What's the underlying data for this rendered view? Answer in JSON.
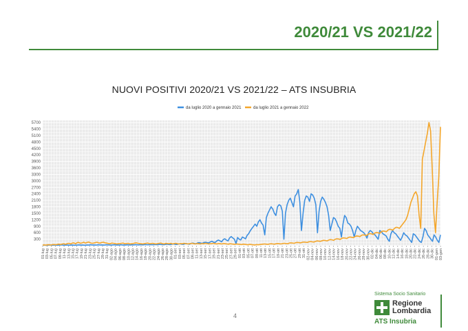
{
  "slide": {
    "title": "2020/21 VS 2021/22",
    "page_number": "4"
  },
  "logo": {
    "system": "Sistema Socio Sanitario",
    "region_line1": "Regione",
    "region_line2": "Lombardia",
    "agency": "ATS Insubria"
  },
  "colors": {
    "accent_green": "#3f8a3a",
    "series_2020": "#3d8fe0",
    "series_2021": "#f4a62a",
    "plot_bg": "#ebebeb",
    "grid": "#ffffff"
  },
  "chart_data": {
    "type": "line",
    "title": "NUOVI POSITIVI 2020/21 VS 2021/22 – ATS INSUBRIA",
    "xlabel": "",
    "ylabel": "",
    "legend_position": "top-center",
    "grid": true,
    "ylim": [
      0,
      5800
    ],
    "y_ticks": [
      300,
      600,
      900,
      1200,
      1500,
      1800,
      2100,
      2400,
      2700,
      3000,
      3300,
      3600,
      3900,
      4200,
      4500,
      4800,
      5100,
      5400,
      5700
    ],
    "x_tick_labels": [
      "01-lug",
      "03-lug",
      "05-lug",
      "07-lug",
      "09-lug",
      "11-lug",
      "13-lug",
      "15-lug",
      "17-lug",
      "19-lug",
      "21-lug",
      "23-lug",
      "25-lug",
      "27-lug",
      "29-lug",
      "31-lug",
      "02-ago",
      "04-ago",
      "06-ago",
      "08-ago",
      "10-ago",
      "12-ago",
      "14-ago",
      "16-ago",
      "18-ago",
      "20-ago",
      "22-ago",
      "24-ago",
      "26-ago",
      "28-ago",
      "30-ago",
      "01-set",
      "03-set",
      "05-set",
      "07-set",
      "09-set",
      "11-set",
      "13-set",
      "15-set",
      "17-set",
      "19-set",
      "21-set",
      "23-set",
      "25-set",
      "27-set",
      "29-set",
      "01-ott",
      "03-ott",
      "05-ott",
      "07-ott",
      "09-ott",
      "11-ott",
      "13-ott",
      "15-ott",
      "17-ott",
      "19-ott",
      "21-ott",
      "23-ott",
      "25-ott",
      "27-ott",
      "29-ott",
      "31-ott",
      "02-nov",
      "04-nov",
      "06-nov",
      "08-nov",
      "10-nov",
      "12-nov",
      "14-nov",
      "16-nov",
      "18-nov",
      "20-nov",
      "22-nov",
      "24-nov",
      "26-nov",
      "28-nov",
      "30-nov",
      "02-dic",
      "04-dic",
      "06-dic",
      "08-dic",
      "10-dic",
      "12-dic",
      "14-dic",
      "16-dic",
      "18-dic",
      "20-dic",
      "22-dic",
      "24-dic",
      "26-dic",
      "28-dic",
      "30-dic",
      "01-gen",
      "03-gen"
    ],
    "series": [
      {
        "name": "da luglio 2020 a gennaio 2021",
        "color": "#3d8fe0",
        "values": [
          20,
          25,
          15,
          20,
          25,
          30,
          20,
          25,
          30,
          20,
          25,
          30,
          35,
          20,
          25,
          30,
          25,
          20,
          30,
          25,
          20,
          25,
          30,
          35,
          25,
          30,
          20,
          25,
          30,
          25,
          40,
          30,
          35,
          25,
          30,
          40,
          30,
          35,
          25,
          30,
          40,
          35,
          30,
          25,
          35,
          40,
          30,
          35,
          25,
          40,
          30,
          35,
          30,
          40,
          35,
          30,
          40,
          35,
          45,
          40,
          35,
          45,
          40,
          35,
          50,
          45,
          40,
          50,
          45,
          40,
          55,
          50,
          45,
          60,
          55,
          50,
          45,
          60,
          70,
          55,
          50,
          70,
          80,
          60,
          55,
          80,
          90,
          70,
          60,
          90,
          100,
          80,
          70,
          110,
          120,
          100,
          90,
          130,
          140,
          120,
          110,
          150,
          160,
          140,
          130,
          180,
          200,
          160,
          150,
          220,
          260,
          220,
          180,
          280,
          320,
          260,
          220,
          360,
          420,
          360,
          300,
          100,
          380,
          300,
          260,
          400,
          360,
          320,
          480,
          560,
          700,
          800,
          900,
          1000,
          900,
          1100,
          1200,
          1050,
          950,
          500,
          1300,
          1500,
          1650,
          1800,
          1700,
          1500,
          1400,
          1800,
          1900,
          1850,
          1600,
          300,
          1500,
          1900,
          2100,
          2200,
          2000,
          1800,
          2300,
          2400,
          2600,
          2000,
          700,
          1500,
          2100,
          2300,
          2250,
          2050,
          2400,
          2350,
          2200,
          1900,
          600,
          1600,
          2050,
          2250,
          2150,
          2000,
          1800,
          1400,
          700,
          1000,
          1300,
          1250,
          1100,
          900,
          800,
          400,
          1000,
          1400,
          1300,
          1050,
          1000,
          900,
          700,
          400,
          700,
          900,
          800,
          700,
          650,
          600,
          500,
          350,
          600,
          700,
          650,
          550,
          500,
          400,
          300,
          700,
          650,
          550,
          500,
          450,
          300,
          200,
          550,
          700,
          600,
          550,
          450,
          350,
          250,
          400,
          600,
          500,
          450,
          350,
          250,
          150,
          550,
          500,
          400,
          300,
          200,
          150,
          400,
          800,
          700,
          500,
          400,
          300,
          200,
          500,
          400,
          250,
          150,
          500
        ]
      },
      {
        "name": "da luglio 2021 a gennaio 2022",
        "color": "#f4a62a",
        "values": [
          30,
          35,
          25,
          40,
          45,
          30,
          50,
          55,
          40,
          60,
          70,
          50,
          80,
          90,
          60,
          100,
          110,
          80,
          120,
          130,
          90,
          140,
          150,
          110,
          130,
          160,
          120,
          150,
          170,
          130,
          110,
          120,
          140,
          160,
          130,
          120,
          150,
          160,
          130,
          120,
          100,
          90,
          120,
          110,
          100,
          80,
          90,
          100,
          110,
          120,
          90,
          100,
          110,
          80,
          90,
          100,
          120,
          130,
          110,
          100,
          90,
          80,
          100,
          110,
          120,
          90,
          100,
          110,
          90,
          80,
          100,
          110,
          120,
          90,
          80,
          110,
          100,
          90,
          110,
          80,
          100,
          110,
          90,
          80,
          100,
          90,
          110,
          100,
          80,
          90,
          100,
          110,
          90,
          80,
          100,
          90,
          80,
          100,
          90,
          110,
          100,
          80,
          90,
          100,
          110,
          90,
          80,
          100,
          90,
          80,
          100,
          90,
          80,
          70,
          90,
          80,
          70,
          60,
          80,
          70,
          60,
          50,
          70,
          60,
          50,
          40,
          60,
          50,
          40,
          30,
          50,
          40,
          50,
          60,
          70,
          80,
          70,
          60,
          80,
          90,
          80,
          70,
          90,
          100,
          90,
          80,
          100,
          110,
          100,
          90,
          120,
          130,
          120,
          110,
          140,
          150,
          140,
          130,
          160,
          170,
          160,
          150,
          180,
          190,
          180,
          170,
          200,
          220,
          210,
          200,
          230,
          250,
          240,
          220,
          260,
          280,
          270,
          250,
          300,
          320,
          310,
          290,
          340,
          360,
          350,
          330,
          380,
          400,
          390,
          370,
          420,
          450,
          440,
          420,
          480,
          500,
          490,
          470,
          530,
          560,
          550,
          520,
          580,
          610,
          600,
          570,
          640,
          680,
          670,
          640,
          720,
          760,
          750,
          720,
          800,
          850,
          840,
          800,
          900,
          1000,
          1100,
          1200,
          1400,
          1700,
          2000,
          2200,
          2400,
          2500,
          2300,
          1400,
          800,
          4000,
          4400,
          4800,
          5200,
          5700,
          5300,
          3500,
          1500,
          600,
          2000,
          3200,
          5500
        ]
      }
    ]
  }
}
